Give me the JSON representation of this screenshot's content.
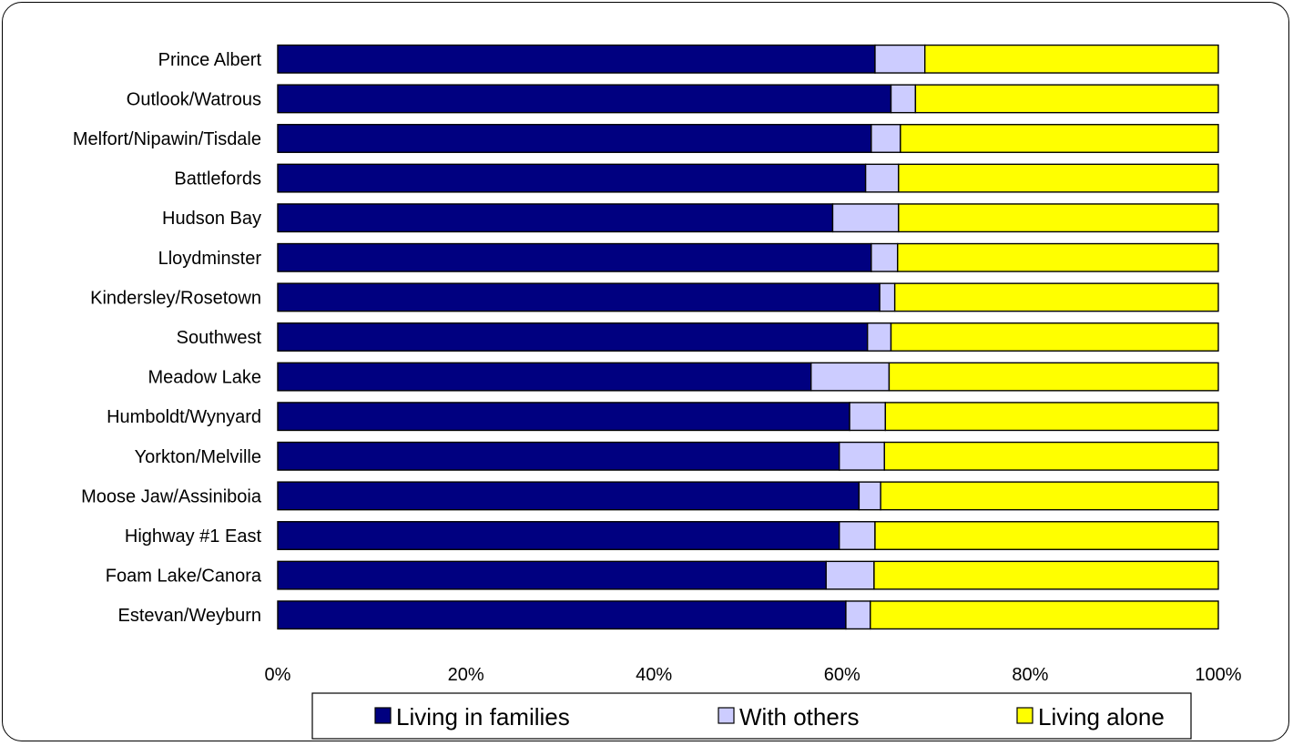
{
  "chart_data": {
    "type": "bar",
    "orientation": "horizontal",
    "stacked": "percent",
    "categories": [
      "Prince Albert",
      "Outlook/Watrous",
      "Melfort/Nipawin/Tisdale",
      "Battlefords",
      "Hudson Bay",
      "Lloydminster",
      "Kindersley/Rosetown",
      "Southwest",
      "Meadow Lake",
      "Humboldt/Wynyard",
      "Yorkton/Melville",
      "Moose Jaw/Assiniboia",
      "Highway #1 East",
      "Foam Lake/Canora",
      "Estevan/Weyburn"
    ],
    "series": [
      {
        "name": "Living in families",
        "color": "#000080",
        "values": [
          63.5,
          65.2,
          63.1,
          62.5,
          59.0,
          63.1,
          64.0,
          62.7,
          56.7,
          60.8,
          59.7,
          61.8,
          59.7,
          58.3,
          60.4
        ]
      },
      {
        "name": "With others",
        "color": "#ccccff",
        "values": [
          5.3,
          2.6,
          3.1,
          3.5,
          7.0,
          2.8,
          1.6,
          2.5,
          8.3,
          3.8,
          4.8,
          2.3,
          3.8,
          5.1,
          2.6
        ]
      },
      {
        "name": "Living alone",
        "color": "#ffff00",
        "values": [
          31.2,
          32.2,
          33.8,
          34.0,
          34.0,
          34.1,
          34.4,
          34.8,
          35.0,
          35.4,
          35.5,
          35.9,
          36.5,
          36.6,
          37.0
        ]
      }
    ],
    "x_ticks": [
      "0%",
      "20%",
      "40%",
      "60%",
      "80%",
      "100%"
    ],
    "xlim": [
      0,
      100
    ],
    "grid": false,
    "legend_position": "bottom"
  }
}
